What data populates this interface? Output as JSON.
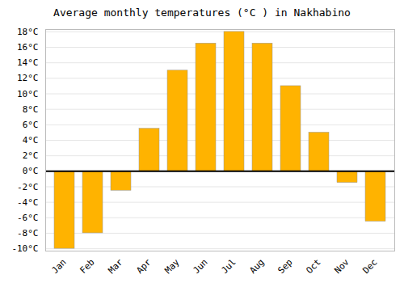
{
  "chart_data": {
    "type": "bar",
    "title": "Average monthly temperatures (°C ) in Nakhabino",
    "categories": [
      "Jan",
      "Feb",
      "Mar",
      "Apr",
      "May",
      "Jun",
      "Jul",
      "Aug",
      "Sep",
      "Oct",
      "Nov",
      "Dec"
    ],
    "values": [
      -10,
      -8,
      -2.5,
      5.5,
      13,
      16.5,
      18,
      16.5,
      11,
      5,
      -1.5,
      -6.5
    ],
    "color": "#FFB300",
    "ylim": [
      -10.3,
      18.3
    ],
    "yticks": [
      {
        "value": -10,
        "label": "-10°C"
      },
      {
        "value": -8,
        "label": "-8°C"
      },
      {
        "value": -6,
        "label": "-6°C"
      },
      {
        "value": -4,
        "label": "-4°C"
      },
      {
        "value": -2,
        "label": "-2°C"
      },
      {
        "value": 0,
        "label": "0°C"
      },
      {
        "value": 2,
        "label": "2°C"
      },
      {
        "value": 4,
        "label": "4°C"
      },
      {
        "value": 6,
        "label": "6°C"
      },
      {
        "value": 8,
        "label": "8°C"
      },
      {
        "value": 10,
        "label": "10°C"
      },
      {
        "value": 12,
        "label": "12°C"
      },
      {
        "value": 14,
        "label": "14°C"
      },
      {
        "value": 16,
        "label": "16°C"
      },
      {
        "value": 18,
        "label": "18°C"
      }
    ],
    "grid": true
  }
}
